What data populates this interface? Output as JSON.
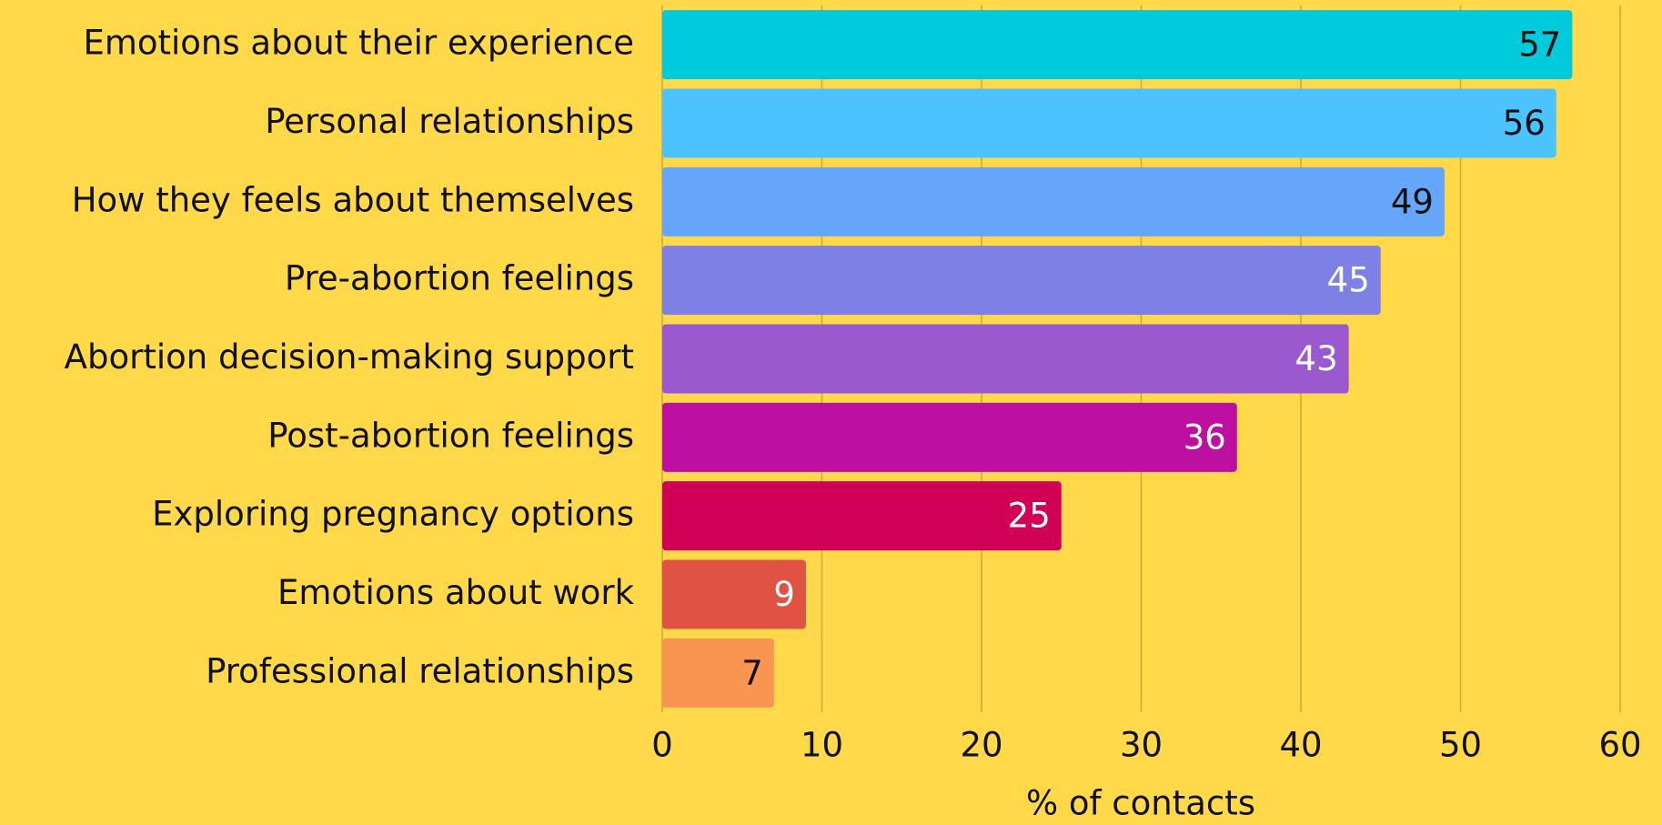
{
  "chart_data": {
    "type": "hbar",
    "categories": [
      "Emotions about their experience",
      "Personal relationships",
      "How they feels about themselves",
      "Pre-abortion feelings",
      "Abortion decision-making support",
      "Post-abortion feelings",
      "Exploring pregnancy options",
      "Emotions about work",
      "Professional relationships"
    ],
    "values": [
      57,
      56,
      49,
      45,
      43,
      36,
      25,
      9,
      7
    ],
    "colors": [
      "#00cbdc",
      "#4cc3ff",
      "#66a6fa",
      "#7e80e6",
      "#9b59cf",
      "#bd10a0",
      "#d10057",
      "#e05244",
      "#f99550"
    ],
    "label_colors": [
      "#111111",
      "#111111",
      "#111111",
      "#ffffff",
      "#ffffff",
      "#ffffff",
      "#ffffff",
      "#ffffff",
      "#111111"
    ],
    "xlabel": "% of contacts",
    "xlim": [
      0,
      60
    ],
    "xticks": [
      0,
      10,
      20,
      30,
      40,
      50,
      60
    ],
    "grid": true
  }
}
